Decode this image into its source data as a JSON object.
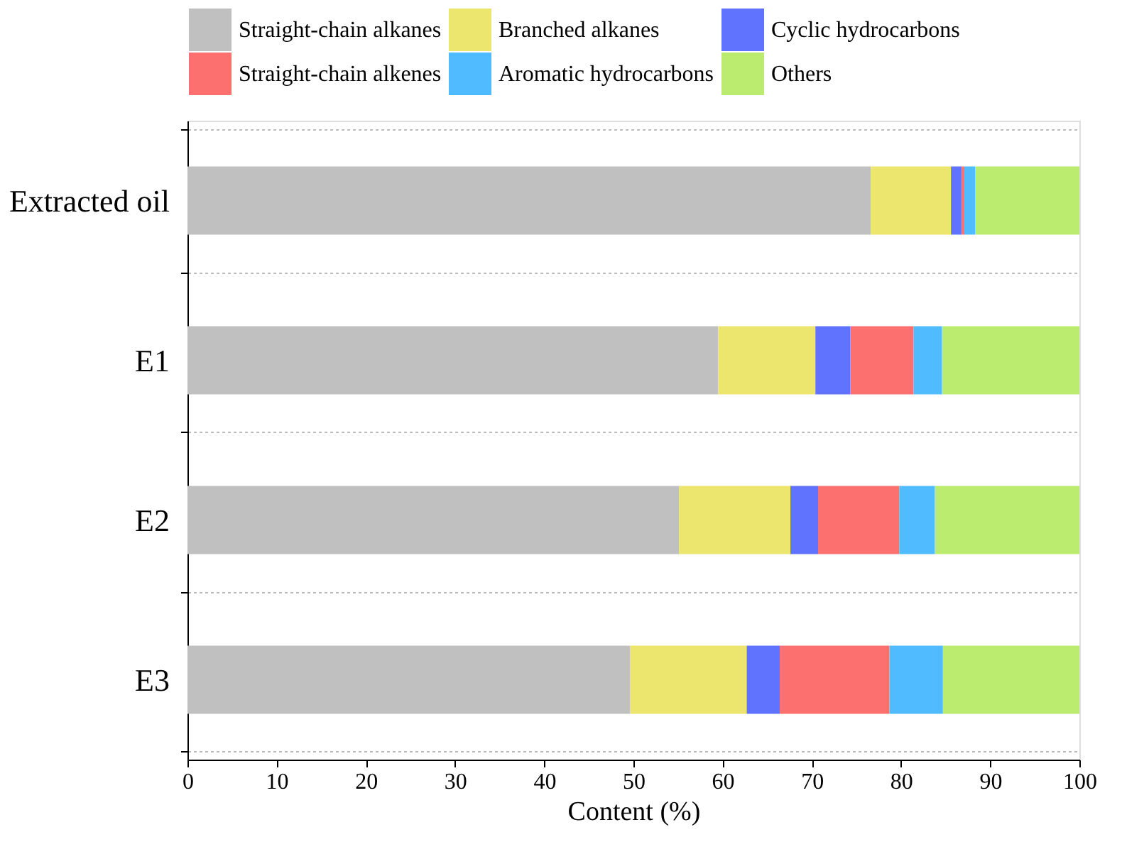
{
  "chart_data": {
    "type": "bar",
    "orientation": "horizontal",
    "stacked": true,
    "xlabel": "Content (%)",
    "categories": [
      "Extracted oil",
      "E1",
      "E2",
      "E3"
    ],
    "series": [
      {
        "name": "Straight-chain alkanes",
        "color": "#c0c0c0",
        "values": [
          76.6,
          59.5,
          55.1,
          49.6
        ]
      },
      {
        "name": "Branched alkanes",
        "color": "#ede66e",
        "values": [
          9.0,
          10.9,
          12.5,
          13.1
        ]
      },
      {
        "name": "Cyclic hydrocarbons",
        "color": "#5f73ff",
        "values": [
          1.2,
          3.9,
          3.1,
          3.7
        ]
      },
      {
        "name": "Straight-chain alkenes",
        "color": "#fd7070",
        "values": [
          0.3,
          7.1,
          9.1,
          12.3
        ]
      },
      {
        "name": "Aromatic hydrocarbons",
        "color": "#50bbff",
        "values": [
          1.2,
          3.2,
          4.0,
          6.0
        ]
      },
      {
        "name": "Others",
        "color": "#bbec6f",
        "values": [
          11.7,
          15.4,
          16.2,
          15.3
        ]
      }
    ],
    "xlim": [
      0,
      100
    ],
    "xticks": [
      0,
      10,
      20,
      30,
      40,
      50,
      60,
      70,
      80,
      90,
      100
    ],
    "grid": "y",
    "legend": "top"
  }
}
